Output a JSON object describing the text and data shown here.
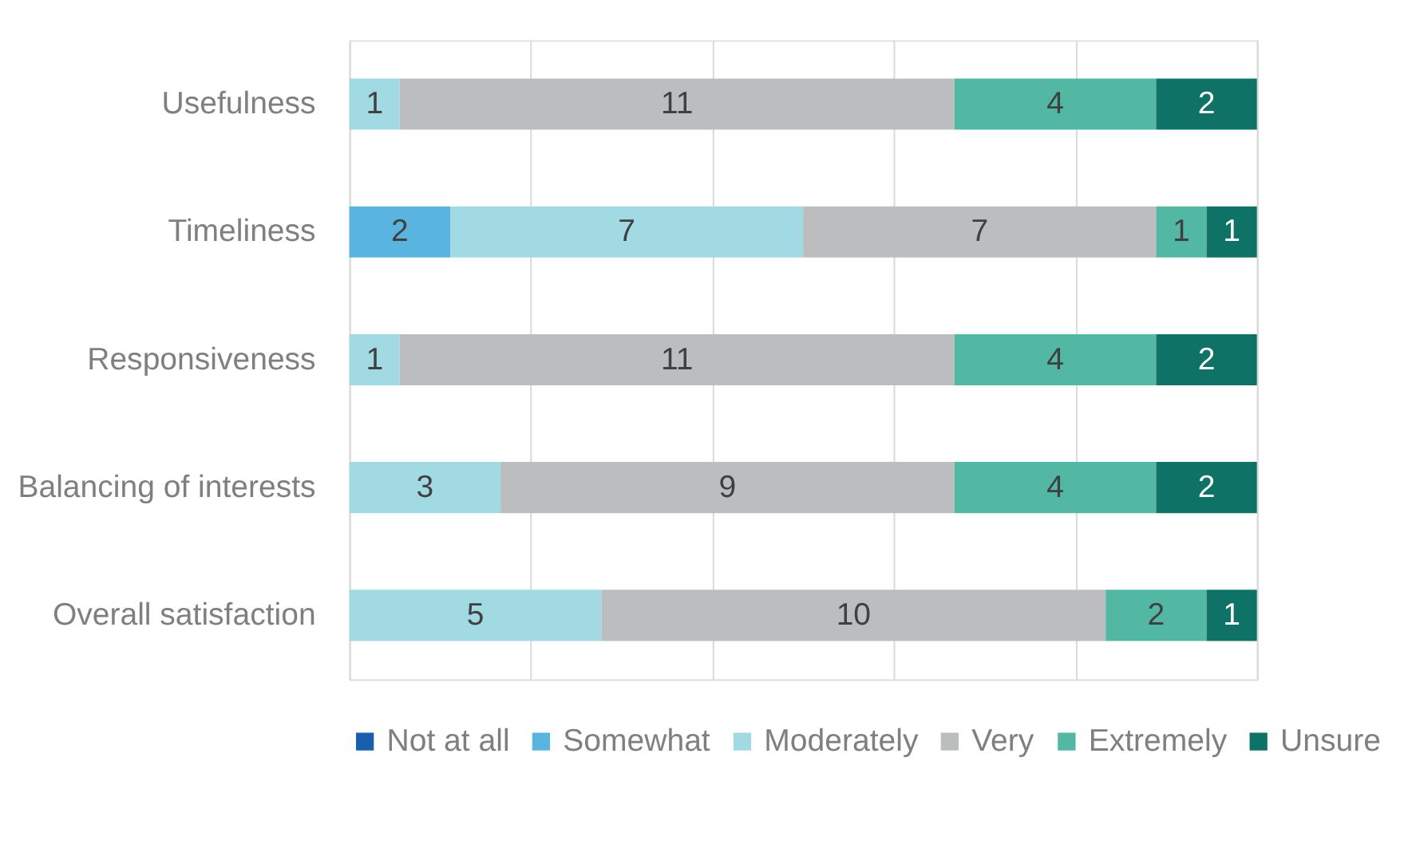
{
  "chart_data": {
    "type": "bar",
    "orientation": "horizontal",
    "stacked": true,
    "categories": [
      "Usefulness",
      "Timeliness",
      "Responsiveness",
      "Balancing of interests",
      "Overall satisfaction"
    ],
    "series": [
      {
        "name": "Not at all",
        "color": "#1a5fad",
        "values": [
          null,
          null,
          null,
          null,
          null
        ]
      },
      {
        "name": "Somewhat",
        "color": "#5ab4e0",
        "values": [
          null,
          2,
          null,
          null,
          null
        ]
      },
      {
        "name": "Moderately",
        "color": "#a1dae2",
        "values": [
          1,
          7,
          1,
          3,
          5
        ]
      },
      {
        "name": "Very",
        "color": "#bbbdbf",
        "values": [
          11,
          7,
          11,
          9,
          10
        ]
      },
      {
        "name": "Extremely",
        "color": "#52b7a3",
        "values": [
          4,
          1,
          4,
          4,
          2
        ]
      },
      {
        "name": "Unsure",
        "color": "#0e7366",
        "values": [
          2,
          1,
          2,
          2,
          1
        ]
      }
    ],
    "xlim": [
      0,
      18
    ],
    "xticks": [
      {
        "value": 0,
        "label": null
      },
      {
        "value": 3.6,
        "label": null
      },
      {
        "value": 7.2,
        "label": null
      },
      {
        "value": 10.8,
        "label": null
      },
      {
        "value": 14.4,
        "label": null
      },
      {
        "value": 18,
        "label": null
      }
    ],
    "tick_labels": "y",
    "grid": "x",
    "legend": "bottom",
    "data_labels": true
  }
}
